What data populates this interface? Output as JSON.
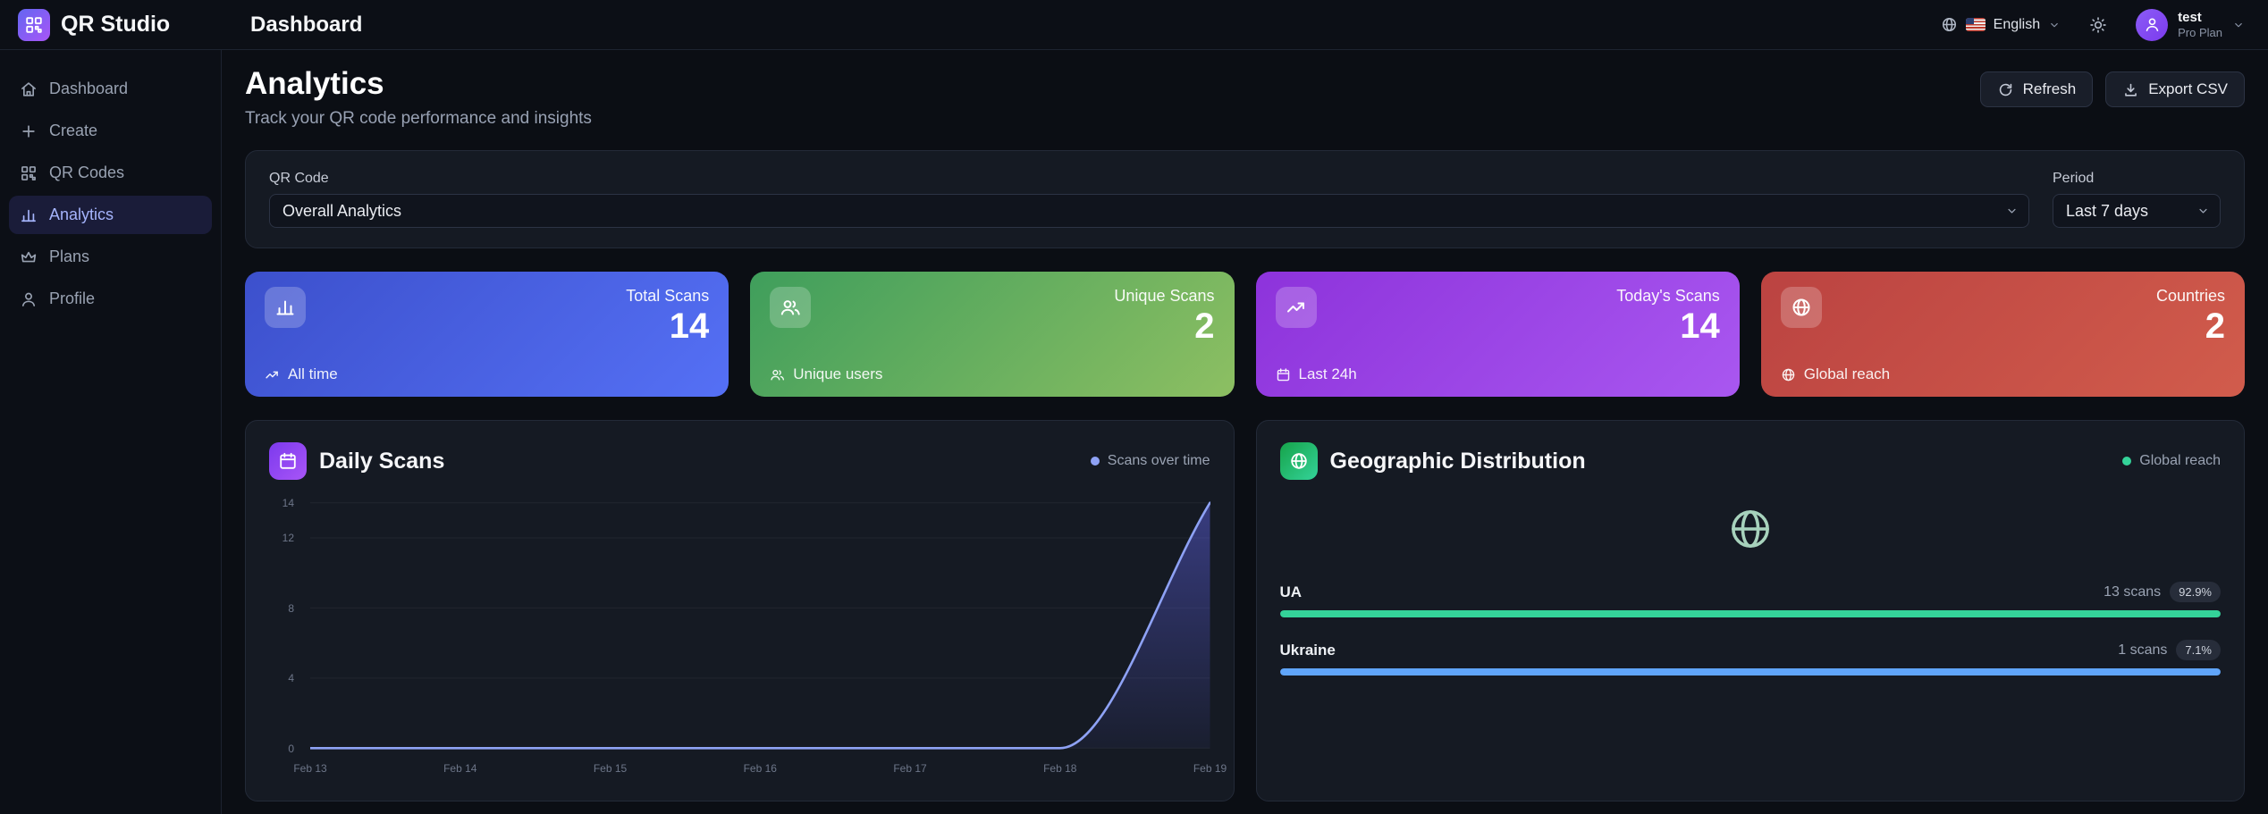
{
  "topbar": {
    "brand": "QR Studio",
    "page_title": "Dashboard",
    "language": {
      "label": "English"
    },
    "user": {
      "name": "test",
      "plan": "Pro Plan"
    }
  },
  "sidebar": {
    "items": [
      {
        "label": "Dashboard"
      },
      {
        "label": "Create"
      },
      {
        "label": "QR Codes"
      },
      {
        "label": "Analytics"
      },
      {
        "label": "Plans"
      },
      {
        "label": "Profile"
      }
    ]
  },
  "page": {
    "title": "Analytics",
    "subtitle": "Track your QR code performance and insights",
    "actions": {
      "refresh": "Refresh",
      "export_csv": "Export CSV"
    }
  },
  "filters": {
    "qr_code": {
      "label": "QR Code",
      "selected": "Overall Analytics"
    },
    "period": {
      "label": "Period",
      "selected": "Last 7 days"
    }
  },
  "stats": [
    {
      "label": "Total Scans",
      "value": "14",
      "footer": "All time",
      "gradient": [
        "#3c50cc",
        "#5570f5"
      ]
    },
    {
      "label": "Unique Scans",
      "value": "2",
      "footer": "Unique users",
      "gradient": [
        "#3f9e5c",
        "#8dbf62"
      ]
    },
    {
      "label": "Today's Scans",
      "value": "14",
      "footer": "Last 24h",
      "gradient": [
        "#8d33db",
        "#a957f0"
      ]
    },
    {
      "label": "Countries",
      "value": "2",
      "footer": "Global reach",
      "gradient": [
        "#bb4341",
        "#d15c4c"
      ]
    }
  ],
  "chart_data": [
    {
      "type": "area",
      "title": "Daily Scans",
      "legend": "Scans over time",
      "legend_position": "top-right",
      "x": [
        "Feb 13",
        "Feb 14",
        "Feb 15",
        "Feb 16",
        "Feb 17",
        "Feb 18",
        "Feb 19"
      ],
      "values": [
        0,
        0,
        0,
        0,
        0,
        0,
        14
      ],
      "ylim": [
        0,
        14
      ],
      "yticks": [
        0,
        4,
        8,
        12,
        14
      ],
      "grid": true,
      "line_color": "#8ea2f5",
      "fill_top": "rgba(99,102,241,0.45)",
      "fill_bottom": "rgba(99,102,241,0.06)"
    },
    {
      "type": "bar",
      "title": "Geographic Distribution",
      "legend": "Global reach",
      "legend_color": "#34d399",
      "rows": [
        {
          "country": "UA",
          "scans": 13,
          "scans_label": "13 scans",
          "percent": "92.9%",
          "bar_color": "#34d399"
        },
        {
          "country": "Ukraine",
          "scans": 1,
          "scans_label": "1 scans",
          "percent": "7.1%",
          "bar_color": "#60a5fa"
        }
      ]
    }
  ]
}
